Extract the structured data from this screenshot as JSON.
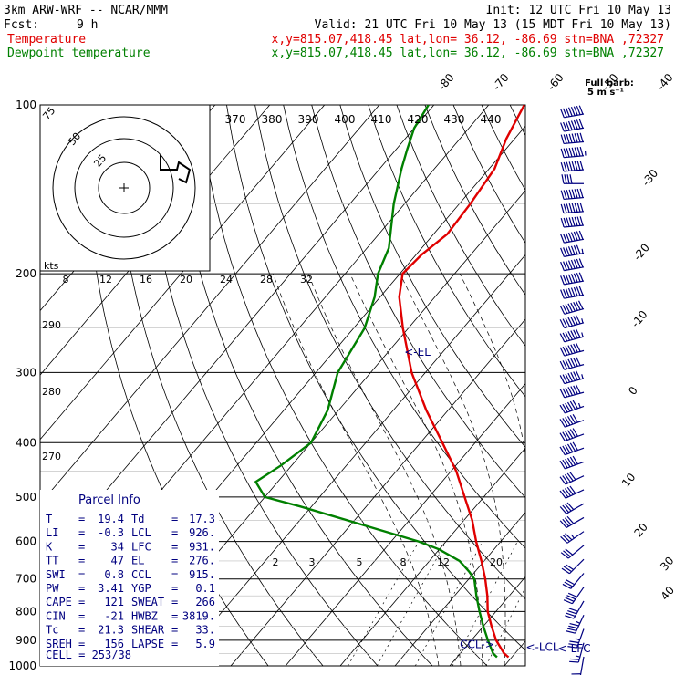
{
  "header": {
    "model": "3km ARW-WRF -- NCAR/MMM",
    "init": "Init: 12 UTC Fri 10 May 13",
    "fcst_label": "Fcst:",
    "fcst_value": "9 h",
    "valid": "Valid: 21 UTC Fri 10 May 13 (15 MDT Fri 10 May 13)",
    "temp_line": {
      "label": "Temperature",
      "info": "x,y=815.07,418.45   lat,lon= 36.12, -86.69   stn=BNA ,72327"
    },
    "dew_line": {
      "label": "Dewpoint temperature",
      "info": "x,y=815.07,418.45   lat,lon= 36.12, -86.69   stn=BNA ,72327"
    }
  },
  "colors": {
    "temperature": "#e00000",
    "dewpoint": "#008000",
    "barbs": "#000080",
    "parcel_text": "#000080",
    "grid": "#000000"
  },
  "chart_data": {
    "type": "line",
    "chart_kind": "skew-T log-p sounding",
    "pressure_levels": [
      {
        "p": 100,
        "label": "100"
      },
      {
        "p": 200,
        "label": "200"
      },
      {
        "p": 300,
        "label": "300"
      },
      {
        "p": 400,
        "label": "400"
      },
      {
        "p": 500,
        "label": "500"
      },
      {
        "p": 600,
        "label": "600"
      },
      {
        "p": 700,
        "label": "700"
      },
      {
        "p": 800,
        "label": "800"
      },
      {
        "p": 900,
        "label": "900"
      },
      {
        "p": 1000,
        "label": "1000"
      }
    ],
    "isotherm_labels": [
      {
        "t": -80,
        "label": "-80"
      },
      {
        "t": -70,
        "label": "-70"
      },
      {
        "t": -60,
        "label": "-60"
      },
      {
        "t": -50,
        "label": "-50"
      },
      {
        "t": -40,
        "label": "-40"
      },
      {
        "t": -30,
        "label": "-30"
      },
      {
        "t": -20,
        "label": "-20"
      },
      {
        "t": -10,
        "label": "-10"
      },
      {
        "t": 0,
        "label": "0"
      },
      {
        "t": 10,
        "label": "10"
      },
      {
        "t": 20,
        "label": "20"
      },
      {
        "t": 30,
        "label": "30"
      },
      {
        "t": 40,
        "label": "40"
      }
    ],
    "theta_labels_top": [
      "370",
      "380",
      "390",
      "400",
      "410",
      "420",
      "430",
      "440"
    ],
    "theta_labels_left": [
      "290",
      "280",
      "270"
    ],
    "mixing_ratio_labels": [
      "2",
      "3",
      "5",
      "8",
      "12",
      "20"
    ],
    "hodograph": {
      "rings": [
        "25",
        "50",
        "75"
      ],
      "speed_axis_label": "kts",
      "speed_ticks": [
        "8",
        "12",
        "16",
        "20",
        "24",
        "28",
        "32"
      ]
    },
    "series": [
      {
        "name": "Temperature",
        "color": "#e00000",
        "points": [
          {
            "p": 965,
            "t": 19.4
          },
          {
            "p": 950,
            "t": 18.0
          },
          {
            "p": 900,
            "t": 14.5
          },
          {
            "p": 850,
            "t": 11.5
          },
          {
            "p": 800,
            "t": 8.5
          },
          {
            "p": 750,
            "t": 6.0
          },
          {
            "p": 700,
            "t": 3.0
          },
          {
            "p": 650,
            "t": -0.5
          },
          {
            "p": 600,
            "t": -4.5
          },
          {
            "p": 550,
            "t": -8.5
          },
          {
            "p": 500,
            "t": -13.5
          },
          {
            "p": 450,
            "t": -19.0
          },
          {
            "p": 400,
            "t": -26.0
          },
          {
            "p": 350,
            "t": -34.0
          },
          {
            "p": 300,
            "t": -42.5
          },
          {
            "p": 250,
            "t": -51.0
          },
          {
            "p": 220,
            "t": -56.5
          },
          {
            "p": 200,
            "t": -59.5
          },
          {
            "p": 185,
            "t": -59.0
          },
          {
            "p": 170,
            "t": -57.5
          },
          {
            "p": 150,
            "t": -58.0
          },
          {
            "p": 130,
            "t": -59.0
          },
          {
            "p": 115,
            "t": -61.5
          },
          {
            "p": 100,
            "t": -63.5
          }
        ]
      },
      {
        "name": "Dewpoint temperature",
        "color": "#008000",
        "points": [
          {
            "p": 965,
            "t": 17.3
          },
          {
            "p": 950,
            "t": 16.0
          },
          {
            "p": 900,
            "t": 13.0
          },
          {
            "p": 850,
            "t": 10.0
          },
          {
            "p": 800,
            "t": 7.0
          },
          {
            "p": 750,
            "t": 4.0
          },
          {
            "p": 700,
            "t": 1.0
          },
          {
            "p": 680,
            "t": -1.0
          },
          {
            "p": 650,
            "t": -4.5
          },
          {
            "p": 620,
            "t": -10.0
          },
          {
            "p": 600,
            "t": -15.0
          },
          {
            "p": 560,
            "t": -28.0
          },
          {
            "p": 520,
            "t": -42.0
          },
          {
            "p": 500,
            "t": -50.0
          },
          {
            "p": 470,
            "t": -54.0
          },
          {
            "p": 440,
            "t": -52.0
          },
          {
            "p": 400,
            "t": -50.0
          },
          {
            "p": 350,
            "t": -52.0
          },
          {
            "p": 300,
            "t": -56.0
          },
          {
            "p": 250,
            "t": -58.0
          },
          {
            "p": 220,
            "t": -61.0
          },
          {
            "p": 200,
            "t": -64.0
          },
          {
            "p": 180,
            "t": -66.0
          },
          {
            "p": 150,
            "t": -72.0
          },
          {
            "p": 130,
            "t": -76.0
          },
          {
            "p": 120,
            "t": -78.0
          },
          {
            "p": 110,
            "t": -80.0
          },
          {
            "p": 100,
            "t": -81.0
          }
        ]
      }
    ],
    "annotations": [
      {
        "text": "<-EL",
        "p": 276,
        "t": -47.0
      },
      {
        "text": "CCL->",
        "p": 915,
        "t": 8.5
      },
      {
        "text": "<-LCL",
        "p": 926,
        "t": 21.0
      },
      {
        "text": "<-LFC",
        "p": 931,
        "t": 27.0
      }
    ],
    "wind_barbs": {
      "legend_title": "Full barb:",
      "legend_units": "5 m s⁻¹",
      "speeds_ms": [
        40,
        42,
        42,
        44,
        42,
        22,
        40,
        42,
        40,
        40,
        38,
        40,
        42,
        40,
        40,
        38,
        38,
        36,
        36,
        38,
        36,
        34,
        32,
        30,
        30,
        30,
        26,
        26,
        22,
        20,
        18,
        16,
        16,
        16,
        20,
        22,
        24,
        18,
        14,
        10
      ],
      "directions_deg": [
        260,
        260,
        265,
        265,
        265,
        270,
        265,
        265,
        265,
        260,
        260,
        260,
        260,
        260,
        255,
        255,
        255,
        255,
        255,
        255,
        255,
        250,
        250,
        250,
        250,
        250,
        245,
        245,
        240,
        240,
        235,
        230,
        225,
        220,
        215,
        210,
        205,
        200,
        195,
        190
      ]
    }
  },
  "parcel_info": {
    "title": "Parcel Info",
    "rows": [
      {
        "l1": "T",
        "v1": "19.4",
        "l2": "Td",
        "v2": "17.3"
      },
      {
        "l1": "LI",
        "v1": "-0.3",
        "l2": "LCL",
        "v2": "926."
      },
      {
        "l1": "K",
        "v1": "34",
        "l2": "LFC",
        "v2": "931."
      },
      {
        "l1": "TT",
        "v1": "47",
        "l2": "EL",
        "v2": "276."
      },
      {
        "l1": "SWI",
        "v1": "0.8",
        "l2": "CCL",
        "v2": "915."
      },
      {
        "l1": "PW",
        "v1": "3.41",
        "l2": "YGP",
        "v2": "0.1"
      },
      {
        "l1": "CAPE",
        "v1": "121",
        "l2": "SWEAT",
        "v2": "266"
      },
      {
        "l1": "CIN",
        "v1": "-21",
        "l2": "HWBZ",
        "v2": "3819."
      },
      {
        "l1": "Tc",
        "v1": "21.3",
        "l2": "SHEAR",
        "v2": "33."
      },
      {
        "l1": "SREH",
        "v1": "156",
        "l2": "LAPSE",
        "v2": "5.9"
      }
    ],
    "cell": "CELL = 253/38"
  }
}
